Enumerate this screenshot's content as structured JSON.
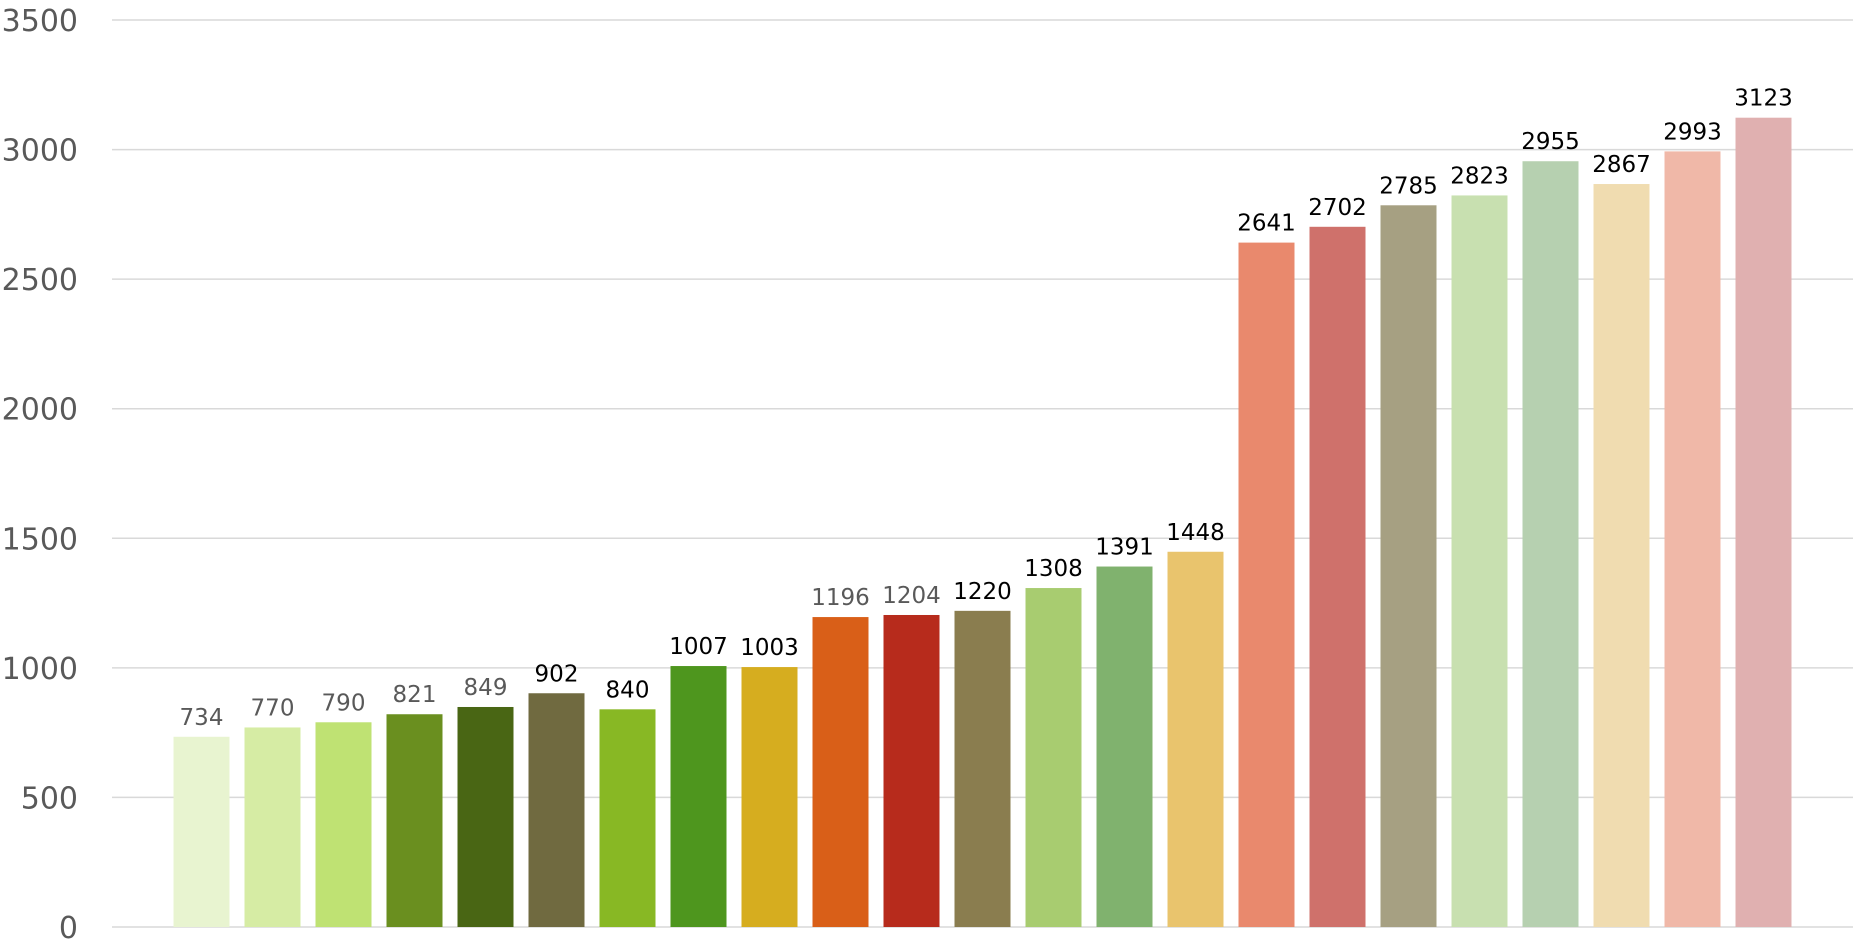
{
  "chart_data": {
    "type": "bar",
    "title": "",
    "xlabel": "",
    "ylabel": "",
    "ylim": [
      0,
      3500
    ],
    "y_ticks": [
      "0",
      "500",
      "1000",
      "1500",
      "2000",
      "2500",
      "3000",
      "3500"
    ],
    "grid": true,
    "legend": "none",
    "values": [
      734,
      770,
      790,
      821,
      849,
      902,
      840,
      1007,
      1003,
      1196,
      1204,
      1220,
      1308,
      1391,
      1448,
      2641,
      2702,
      2785,
      2823,
      2955,
      2867,
      2993,
      3123
    ],
    "labels": [
      "734",
      "770",
      "790",
      "821",
      "849",
      "902",
      "840",
      "1007",
      "1003",
      "1196",
      "1204",
      "1220",
      "1308",
      "1391",
      "1448",
      "2641",
      "2702",
      "2785",
      "2823",
      "2955",
      "2867",
      "2993",
      "3123"
    ],
    "colors": [
      "#e8f4d0",
      "#d6eca4",
      "#bfe273",
      "#6a8f1f",
      "#496614",
      "#706a40",
      "#88b824",
      "#4e961e",
      "#d6ad1f",
      "#d95f18",
      "#b72b1c",
      "#8a7d4f",
      "#a8cc70",
      "#80b26e",
      "#e9c46d",
      "#e9896d",
      "#cf716b",
      "#a6a082",
      "#c8e0b0",
      "#b6d0b0",
      "#f0dcb0",
      "#f0b8a8",
      "#e0b0b0"
    ],
    "label_colors": [
      "#595959",
      "#595959",
      "#595959",
      "#595959",
      "#595959",
      "#000000",
      "#000000",
      "#000000",
      "#000000",
      "#595959",
      "#595959",
      "#000000",
      "#000000",
      "#000000",
      "#000000",
      "#000000",
      "#000000",
      "#000000",
      "#000000",
      "#000000",
      "#000000",
      "#000000",
      "#000000"
    ]
  }
}
